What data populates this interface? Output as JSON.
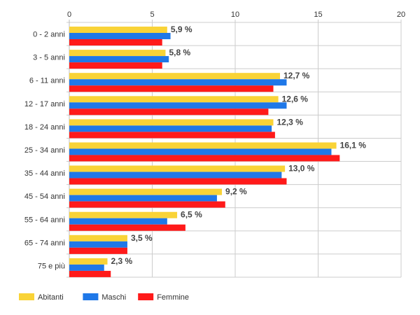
{
  "chart_data": {
    "type": "bar",
    "orientation": "horizontal",
    "categories": [
      "0 - 2 anni",
      "3 - 5 anni",
      "6 - 11 anni",
      "12 - 17 anni",
      "18 - 24 anni",
      "25 - 34 anni",
      "35 - 44 anni",
      "45 - 54 anni",
      "55 - 64 anni",
      "65 - 74 anni",
      "75 e più"
    ],
    "series": [
      {
        "name": "Abitanti",
        "color": "#f9d337",
        "values": [
          5.9,
          5.8,
          12.7,
          12.6,
          12.3,
          16.1,
          13.0,
          9.2,
          6.5,
          3.5,
          2.3
        ]
      },
      {
        "name": "Maschi",
        "color": "#1f78e8",
        "values": [
          6.1,
          6.0,
          13.1,
          13.1,
          12.2,
          15.8,
          12.8,
          8.9,
          5.9,
          3.5,
          2.1
        ]
      },
      {
        "name": "Femmine",
        "color": "#ff1a1a",
        "values": [
          5.6,
          5.6,
          12.3,
          12.0,
          12.4,
          16.3,
          13.1,
          9.4,
          7.0,
          3.5,
          2.5
        ]
      }
    ],
    "data_labels": [
      "5,9 %",
      "5,8 %",
      "12,7 %",
      "12,6 %",
      "12,3 %",
      "16,1 %",
      "13,0 %",
      "9,2 %",
      "6,5 %",
      "3,5 %",
      "2,3 %"
    ],
    "xlim": [
      0,
      20
    ],
    "xticks": [
      "0",
      "5",
      "10",
      "15",
      "20"
    ],
    "x_axis_position": "top",
    "grid": true,
    "legend_position": "bottom-left",
    "title": "",
    "xlabel": "",
    "ylabel": ""
  }
}
